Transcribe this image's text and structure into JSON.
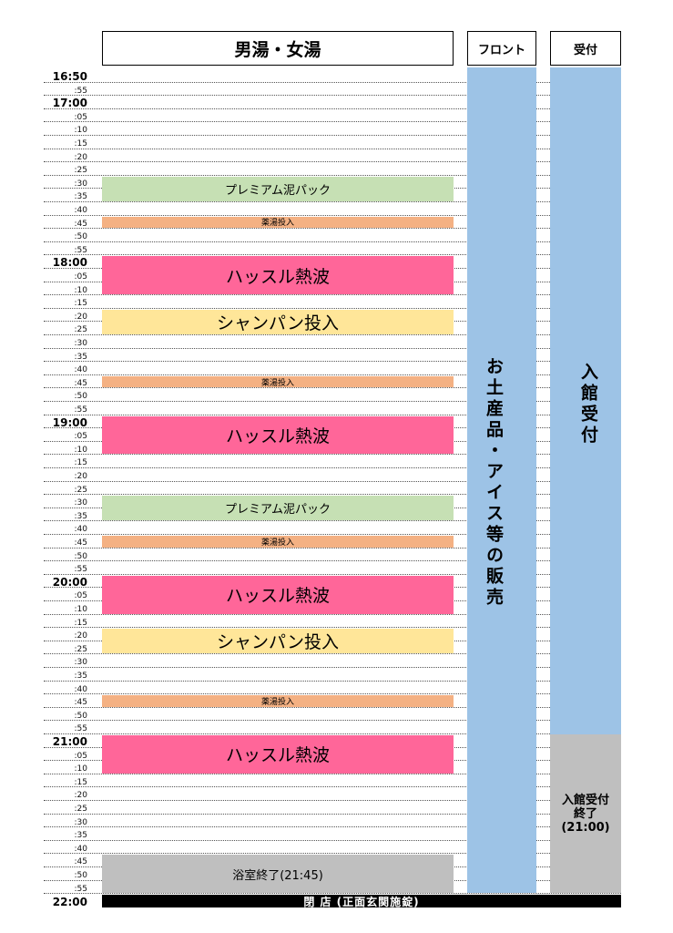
{
  "headers": {
    "main": "男湯・女湯",
    "front": "フロント",
    "reception": "受付"
  },
  "time_labels": [
    "16:50",
    ":55",
    "17:00",
    ":05",
    ":10",
    ":15",
    ":20",
    ":25",
    ":30",
    ":35",
    ":40",
    ":45",
    ":50",
    ":55",
    "18:00",
    ":05",
    ":10",
    ":15",
    ":20",
    ":25",
    ":30",
    ":35",
    ":40",
    ":45",
    ":50",
    ":55",
    "19:00",
    ":05",
    ":10",
    ":15",
    ":20",
    ":25",
    ":30",
    ":35",
    ":40",
    ":45",
    ":50",
    ":55",
    "20:00",
    ":05",
    ":10",
    ":15",
    ":20",
    ":25",
    ":30",
    ":35",
    ":40",
    ":45",
    ":50",
    ":55",
    "21:00",
    ":05",
    ":10",
    ":15",
    ":20",
    ":25",
    ":30",
    ":35",
    ":40",
    ":45",
    ":50",
    ":55"
  ],
  "closing_time": "22:00",
  "events": [
    {
      "label": "プレミアム泥パック",
      "start": "17:30",
      "end": "17:40",
      "kind": "mud-pack"
    },
    {
      "label": "薬湯投入",
      "start": "17:45",
      "end": "17:50",
      "kind": "herbal-bath"
    },
    {
      "label": "ハッスル熱波",
      "start": "18:00",
      "end": "18:15",
      "kind": "heat-wave"
    },
    {
      "label": "シャンパン投入",
      "start": "18:20",
      "end": "18:30",
      "kind": "champagne"
    },
    {
      "label": "薬湯投入",
      "start": "18:45",
      "end": "18:50",
      "kind": "herbal-bath"
    },
    {
      "label": "ハッスル熱波",
      "start": "19:00",
      "end": "19:15",
      "kind": "heat-wave"
    },
    {
      "label": "プレミアム泥パック",
      "start": "19:30",
      "end": "19:40",
      "kind": "mud-pack"
    },
    {
      "label": "薬湯投入",
      "start": "19:45",
      "end": "19:50",
      "kind": "herbal-bath"
    },
    {
      "label": "ハッスル熱波",
      "start": "20:00",
      "end": "20:15",
      "kind": "heat-wave"
    },
    {
      "label": "シャンパン投入",
      "start": "20:20",
      "end": "20:30",
      "kind": "champagne"
    },
    {
      "label": "薬湯投入",
      "start": "20:45",
      "end": "20:50",
      "kind": "herbal-bath"
    },
    {
      "label": "ハッスル熱波",
      "start": "21:00",
      "end": "21:15",
      "kind": "heat-wave"
    },
    {
      "label": "浴室終了(21:45)",
      "start": "21:45",
      "end": "22:00",
      "kind": "bath-closed"
    }
  ],
  "front_text": "お土産品・アイス等の販売",
  "reception_text": "入館受付",
  "reception_end": {
    "line1": "入館受付",
    "line2": "終了",
    "line3": "(21:00)"
  },
  "closing_label": "閉 店 (正面玄関施錠)",
  "colors": {
    "column_blue": "#9dc3e6",
    "mud_pack": "#c6e0b4",
    "herbal_bath": "#f4b183",
    "heat_wave": "#ff6699",
    "champagne": "#ffe699",
    "closed_gray": "#bfbfbf",
    "closing_bar": "#000000"
  }
}
